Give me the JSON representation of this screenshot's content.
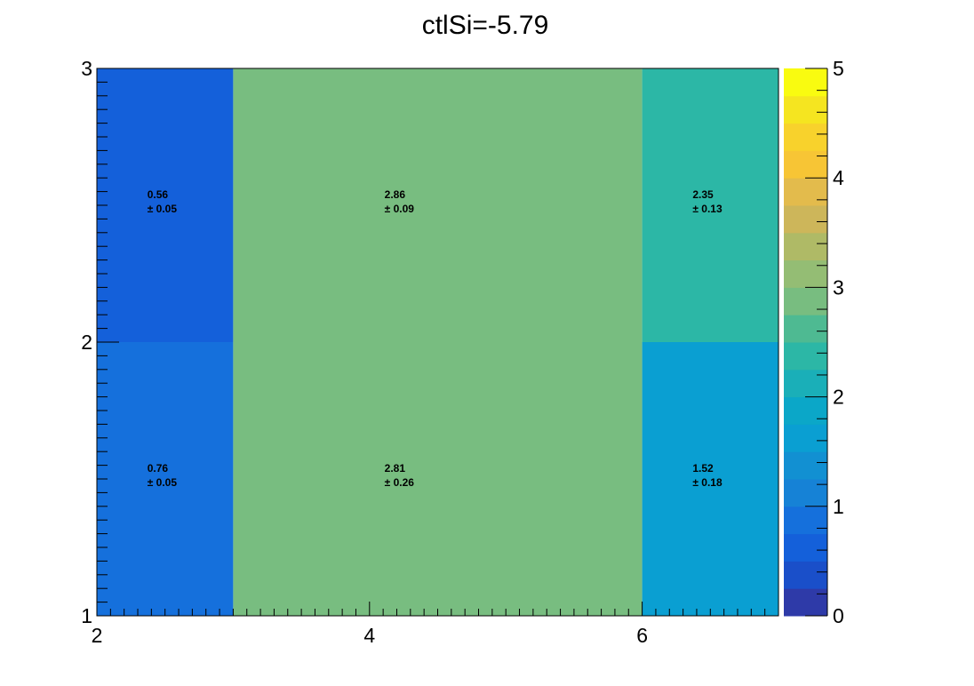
{
  "chart_data": {
    "type": "heatmap",
    "title": "ctlSi=-5.79",
    "xlabel": "",
    "ylabel": "",
    "xlim": [
      2,
      7
    ],
    "ylim": [
      1,
      3
    ],
    "x_ticks": [
      2,
      4,
      6
    ],
    "y_ticks": [
      1,
      2,
      3
    ],
    "x_bin_edges": [
      2,
      3,
      6,
      7
    ],
    "y_bin_edges": [
      1,
      2,
      3
    ],
    "cells": [
      {
        "x0": 2,
        "x1": 3,
        "y0": 2,
        "y1": 3,
        "value": 0.56,
        "error": 0.05,
        "value_label": "0.56",
        "error_label": "± 0.05"
      },
      {
        "x0": 3,
        "x1": 6,
        "y0": 2,
        "y1": 3,
        "value": 2.86,
        "error": 0.09,
        "value_label": "2.86",
        "error_label": "± 0.09"
      },
      {
        "x0": 6,
        "x1": 7,
        "y0": 2,
        "y1": 3,
        "value": 2.35,
        "error": 0.13,
        "value_label": "2.35",
        "error_label": "± 0.13"
      },
      {
        "x0": 2,
        "x1": 3,
        "y0": 1,
        "y1": 2,
        "value": 0.76,
        "error": 0.05,
        "value_label": "0.76",
        "error_label": "± 0.05"
      },
      {
        "x0": 3,
        "x1": 6,
        "y0": 1,
        "y1": 2,
        "value": 2.81,
        "error": 0.26,
        "value_label": "2.81",
        "error_label": "± 0.26"
      },
      {
        "x0": 6,
        "x1": 7,
        "y0": 1,
        "y1": 2,
        "value": 1.52,
        "error": 0.18,
        "value_label": "1.52",
        "error_label": "± 0.18"
      }
    ],
    "colorbar": {
      "range": [
        0,
        5
      ],
      "ticks": [
        0,
        1,
        2,
        3,
        4,
        5
      ],
      "palette": [
        "#2e3aa8",
        "#1a4fc9",
        "#1460da",
        "#1570dc",
        "#1682d6",
        "#1290d2",
        "#0a9fd2",
        "#0ba7c8",
        "#1aafb8",
        "#2cb7a6",
        "#4eba92",
        "#78bd80",
        "#94bd74",
        "#afba66",
        "#cdb65a",
        "#e3bb4c",
        "#f7c535",
        "#f8d22c",
        "#f5e520",
        "#f9fb10"
      ]
    }
  }
}
